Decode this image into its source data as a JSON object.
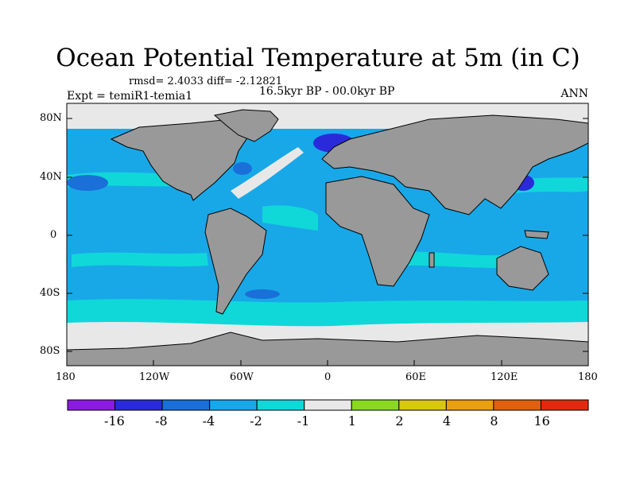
{
  "header": {
    "title": "Ocean Potential Temperature at 5m (in C)",
    "stats": "rmsd= 2.4033 diff= -2.12821",
    "experiment": "Expt = temiR1-temia1",
    "period": "16.5kyr BP - 00.0kyr BP",
    "season": "ANN"
  },
  "axes": {
    "y_ticks": [
      "80N",
      "40N",
      "0",
      "40S",
      "80S"
    ],
    "x_ticks": [
      "180",
      "120W",
      "60W",
      "0",
      "60E",
      "120E",
      "180"
    ]
  },
  "colorbar": {
    "labels": [
      "-16",
      "-8",
      "-4",
      "-2",
      "-1",
      "1",
      "2",
      "4",
      "8",
      "16"
    ],
    "colors": [
      "#8a1be0",
      "#2a2adb",
      "#1a6fd8",
      "#18a8e8",
      "#10d8d8",
      "#e8e8e8",
      "#8ad820",
      "#d8c810",
      "#e8a010",
      "#e06010",
      "#e02a10"
    ]
  },
  "map_colors": {
    "land": "#999999",
    "ocean_main": "#18a8e8",
    "ocean_minus1": "#10d8d8",
    "ocean_minus4": "#1a6fd8",
    "ocean_minus8": "#2a2adb",
    "near_zero": "#e8e8e8"
  }
}
